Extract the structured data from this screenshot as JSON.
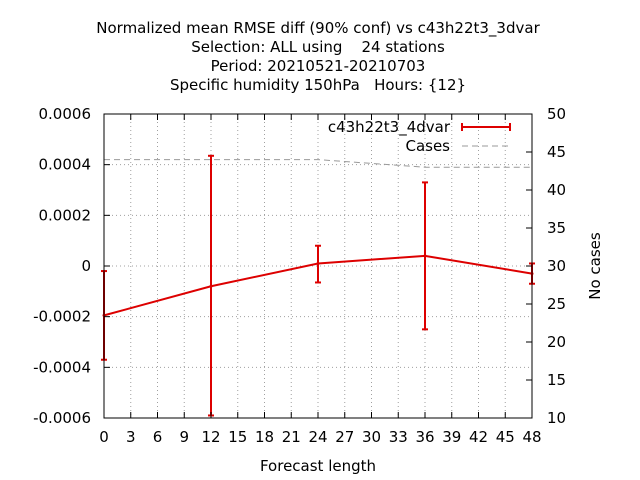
{
  "chart_data": {
    "type": "line",
    "title_lines": [
      "Normalized mean RMSE diff (90% conf) vs c43h22t3_3dvar",
      "Selection: ALL using    24 stations",
      "Period: 20210521-20210703",
      "Specific humidity 150hPa   Hours: {12}"
    ],
    "xlabel": "Forecast length",
    "ylabel": "",
    "y2label": "No cases",
    "xlim": [
      0,
      48
    ],
    "ylim": [
      -0.0006,
      0.0006
    ],
    "y2lim": [
      10,
      50
    ],
    "x_ticks": [
      0,
      3,
      6,
      9,
      12,
      15,
      18,
      21,
      24,
      27,
      30,
      33,
      36,
      39,
      42,
      45,
      48
    ],
    "y_ticks": [
      -0.0006,
      -0.0004,
      -0.0002,
      0,
      0.0002,
      0.0004,
      0.0006
    ],
    "y_tick_labels": [
      "-0.0006",
      "-0.0004",
      "-0.0002",
      "0",
      "0.0002",
      "0.0004",
      "0.0006"
    ],
    "y2_ticks": [
      10,
      15,
      20,
      25,
      30,
      35,
      40,
      45,
      50
    ],
    "grid": true,
    "legend_position": "top-right",
    "series": [
      {
        "name": "c43h22t3_4dvar",
        "color": "#dd0000",
        "axis": "y",
        "x": [
          0,
          12,
          24,
          36,
          48
        ],
        "y": [
          -0.000195,
          -8e-05,
          1e-05,
          4e-05,
          -3e-05
        ],
        "error_low": [
          -0.00037,
          -0.00059,
          -6.5e-05,
          -0.00025,
          -7e-05
        ],
        "error_high": [
          -2e-05,
          0.000435,
          8e-05,
          0.00033,
          1e-05
        ]
      },
      {
        "name": "Cases",
        "color": "#999999",
        "axis": "y2",
        "dashed": true,
        "x": [
          0,
          12,
          24,
          36,
          48
        ],
        "y": [
          44,
          44,
          44,
          43,
          43
        ]
      }
    ]
  }
}
